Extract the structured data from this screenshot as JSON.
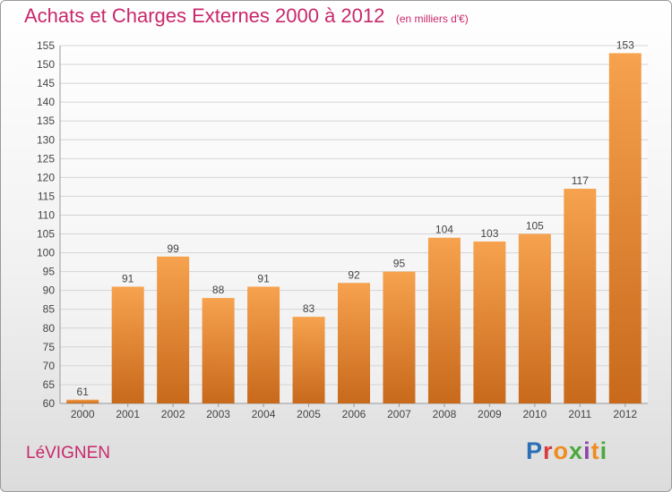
{
  "title": "Achats et Charges Externes 2000 à 2012",
  "unit_note": "(en milliers d'€)",
  "commune": "LéVIGNEN",
  "logo": {
    "text": "Proxiti",
    "colors": [
      "#2a6fb5",
      "#d93c3c",
      "#f08c1e",
      "#4aa83c",
      "#8e44ad",
      "#f08c1e",
      "#4aa83c"
    ]
  },
  "colors": {
    "bar_light": "#f6a24e",
    "bar_dark": "#c8691b",
    "accent": "#c8286b",
    "label": "#444444"
  },
  "chart_data": {
    "type": "bar",
    "categories": [
      "2000",
      "2001",
      "2002",
      "2003",
      "2004",
      "2005",
      "2006",
      "2007",
      "2008",
      "2009",
      "2010",
      "2011",
      "2012"
    ],
    "values": [
      61,
      91,
      99,
      88,
      91,
      83,
      92,
      95,
      104,
      103,
      105,
      117,
      153
    ],
    "title": "Achats et Charges Externes 2000 à 2012",
    "ylim": [
      60,
      155
    ],
    "yticks": [
      60,
      65,
      70,
      75,
      80,
      85,
      90,
      95,
      100,
      105,
      110,
      115,
      120,
      125,
      130,
      135,
      140,
      145,
      150,
      155
    ],
    "grid": true,
    "data_labels": true
  }
}
